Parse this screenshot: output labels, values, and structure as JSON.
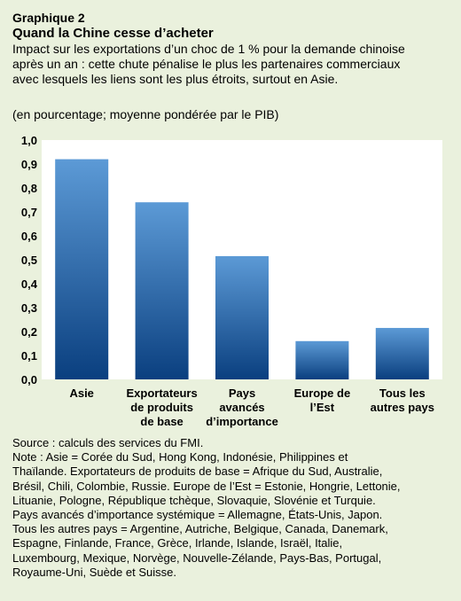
{
  "header": {
    "label": "Graphique 2",
    "title": "Quand la Chine cesse d’acheter",
    "subtitle": "Impact sur les exportations d’un choc de 1 % pour la demande chinoise après un an : cette chute pénalise le plus les partenaires commerciaux avec lesquels les liens sont les plus étroits, surtout en Asie.",
    "units": "(en pourcentage; moyenne pondérée par le PIB)"
  },
  "chart_data": {
    "type": "bar",
    "categories": [
      [
        "Asie"
      ],
      [
        "Exportateurs",
        "de produits",
        "de base"
      ],
      [
        "Pays",
        "avancés",
        "d’importance"
      ],
      [
        "Europe de",
        "l’Est"
      ],
      [
        "Tous les",
        "autres pays"
      ]
    ],
    "values": [
      0.92,
      0.74,
      0.515,
      0.16,
      0.215
    ],
    "ylim": [
      0,
      1.0
    ],
    "yticks": [
      "0,0",
      "0,1",
      "0,2",
      "0,3",
      "0,4",
      "0,5",
      "0,6",
      "0,7",
      "0,8",
      "0,9",
      "1,0"
    ],
    "grid": false,
    "legend": "none",
    "bar_gradient": [
      "#5c9ad6",
      "#0a3f7f"
    ]
  },
  "notes": {
    "source": "Source : calculs des services du FMI.",
    "note_lines": [
      "Note : Asie = Corée du Sud, Hong Kong, Indonésie, Philippines et",
      "Thaïlande. Exportateurs de produits de base = Afrique du Sud, Australie,",
      "Brésil, Chili, Colombie, Russie. Europe de l’Est = Estonie, Hongrie, Lettonie,",
      "Lituanie, Pologne, République tchèque, Slovaquie, Slovénie et Turquie.",
      "Pays avancés d’importance systémique = Allemagne, États-Unis, Japon.",
      "Tous les autres pays = Argentine, Autriche, Belgique, Canada, Danemark,",
      "Espagne, Finlande, France, Grèce, Irlande, Islande, Israël, Italie,",
      "Luxembourg, Mexique, Norvège, Nouvelle-Zélande, Pays-Bas, Portugal,",
      "Royaume-Uni, Suède et Suisse."
    ]
  }
}
